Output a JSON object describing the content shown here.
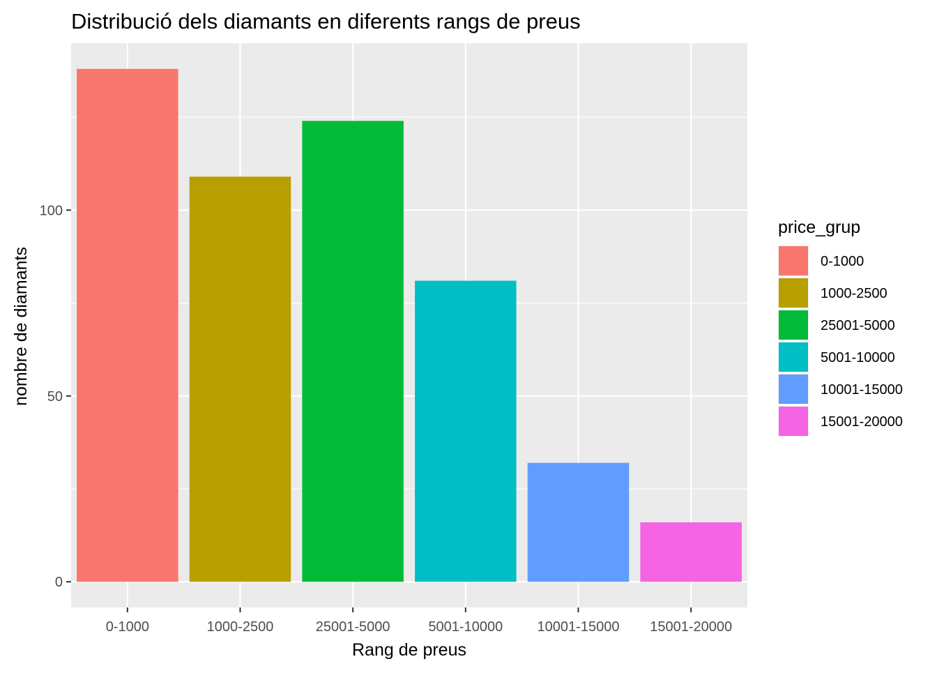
{
  "chart_data": {
    "type": "bar",
    "title": "Distribució dels diamants en diferents rangs de preus",
    "xlabel": "Rang de preus",
    "ylabel": "nombre de diamants",
    "categories": [
      "0-1000",
      "1000-2500",
      "25001-5000",
      "5001-10000",
      "10001-15000",
      "15001-20000"
    ],
    "values": [
      138,
      109,
      124,
      81,
      32,
      16
    ],
    "colors": [
      "#F8766D",
      "#B79F00",
      "#00BA38",
      "#00BFC4",
      "#619CFF",
      "#F564E3"
    ],
    "ylim": [
      -6.9,
      144.9
    ],
    "yticks": [
      0,
      50,
      100
    ],
    "grid": true,
    "legend": {
      "title": "price_grup",
      "position": "right",
      "entries": [
        "0-1000",
        "1000-2500",
        "25001-5000",
        "5001-10000",
        "10001-15000",
        "15001-20000"
      ]
    },
    "panel_background": "#EBEBEB",
    "grid_color": "#FFFFFF"
  }
}
